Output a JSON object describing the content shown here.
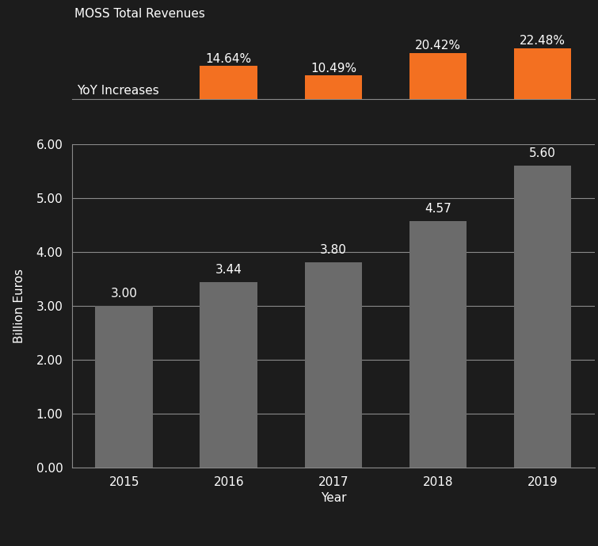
{
  "chart_data": [
    {
      "type": "bar",
      "title": "MOSS Total Revenues",
      "x_label": "Year",
      "y_label": "Billion Euros",
      "categories": [
        "2015",
        "2016",
        "2017",
        "2018",
        "2019"
      ],
      "values": [
        3.0,
        3.44,
        3.8,
        4.57,
        5.6
      ],
      "value_labels": [
        "3.00",
        "3.44",
        "3.80",
        "4.57",
        "5.60"
      ],
      "color": "#6b6b6b",
      "ylim": [
        0,
        6
      ],
      "yticks": [
        {
          "value": 0,
          "label": "0.00"
        },
        {
          "value": 1,
          "label": "1.00"
        },
        {
          "value": 2,
          "label": "2.00"
        },
        {
          "value": 3,
          "label": "3.00"
        },
        {
          "value": 4,
          "label": "4.00"
        },
        {
          "value": 5,
          "label": "5.00"
        },
        {
          "value": 6,
          "label": "6.00"
        }
      ],
      "grid": true,
      "data_labels": true
    },
    {
      "type": "bar",
      "title": "YoY Increases",
      "categories": [
        "2015",
        "2016",
        "2017",
        "2018",
        "2019"
      ],
      "values": [
        null,
        14.64,
        10.49,
        20.42,
        22.48
      ],
      "value_labels": [
        null,
        "14.64%",
        "10.49%",
        "20.42%",
        "22.48%"
      ],
      "color": "#f37021",
      "ylim": [
        0,
        30
      ],
      "yticks": [],
      "data_labels": true,
      "tick_labels": false
    }
  ]
}
